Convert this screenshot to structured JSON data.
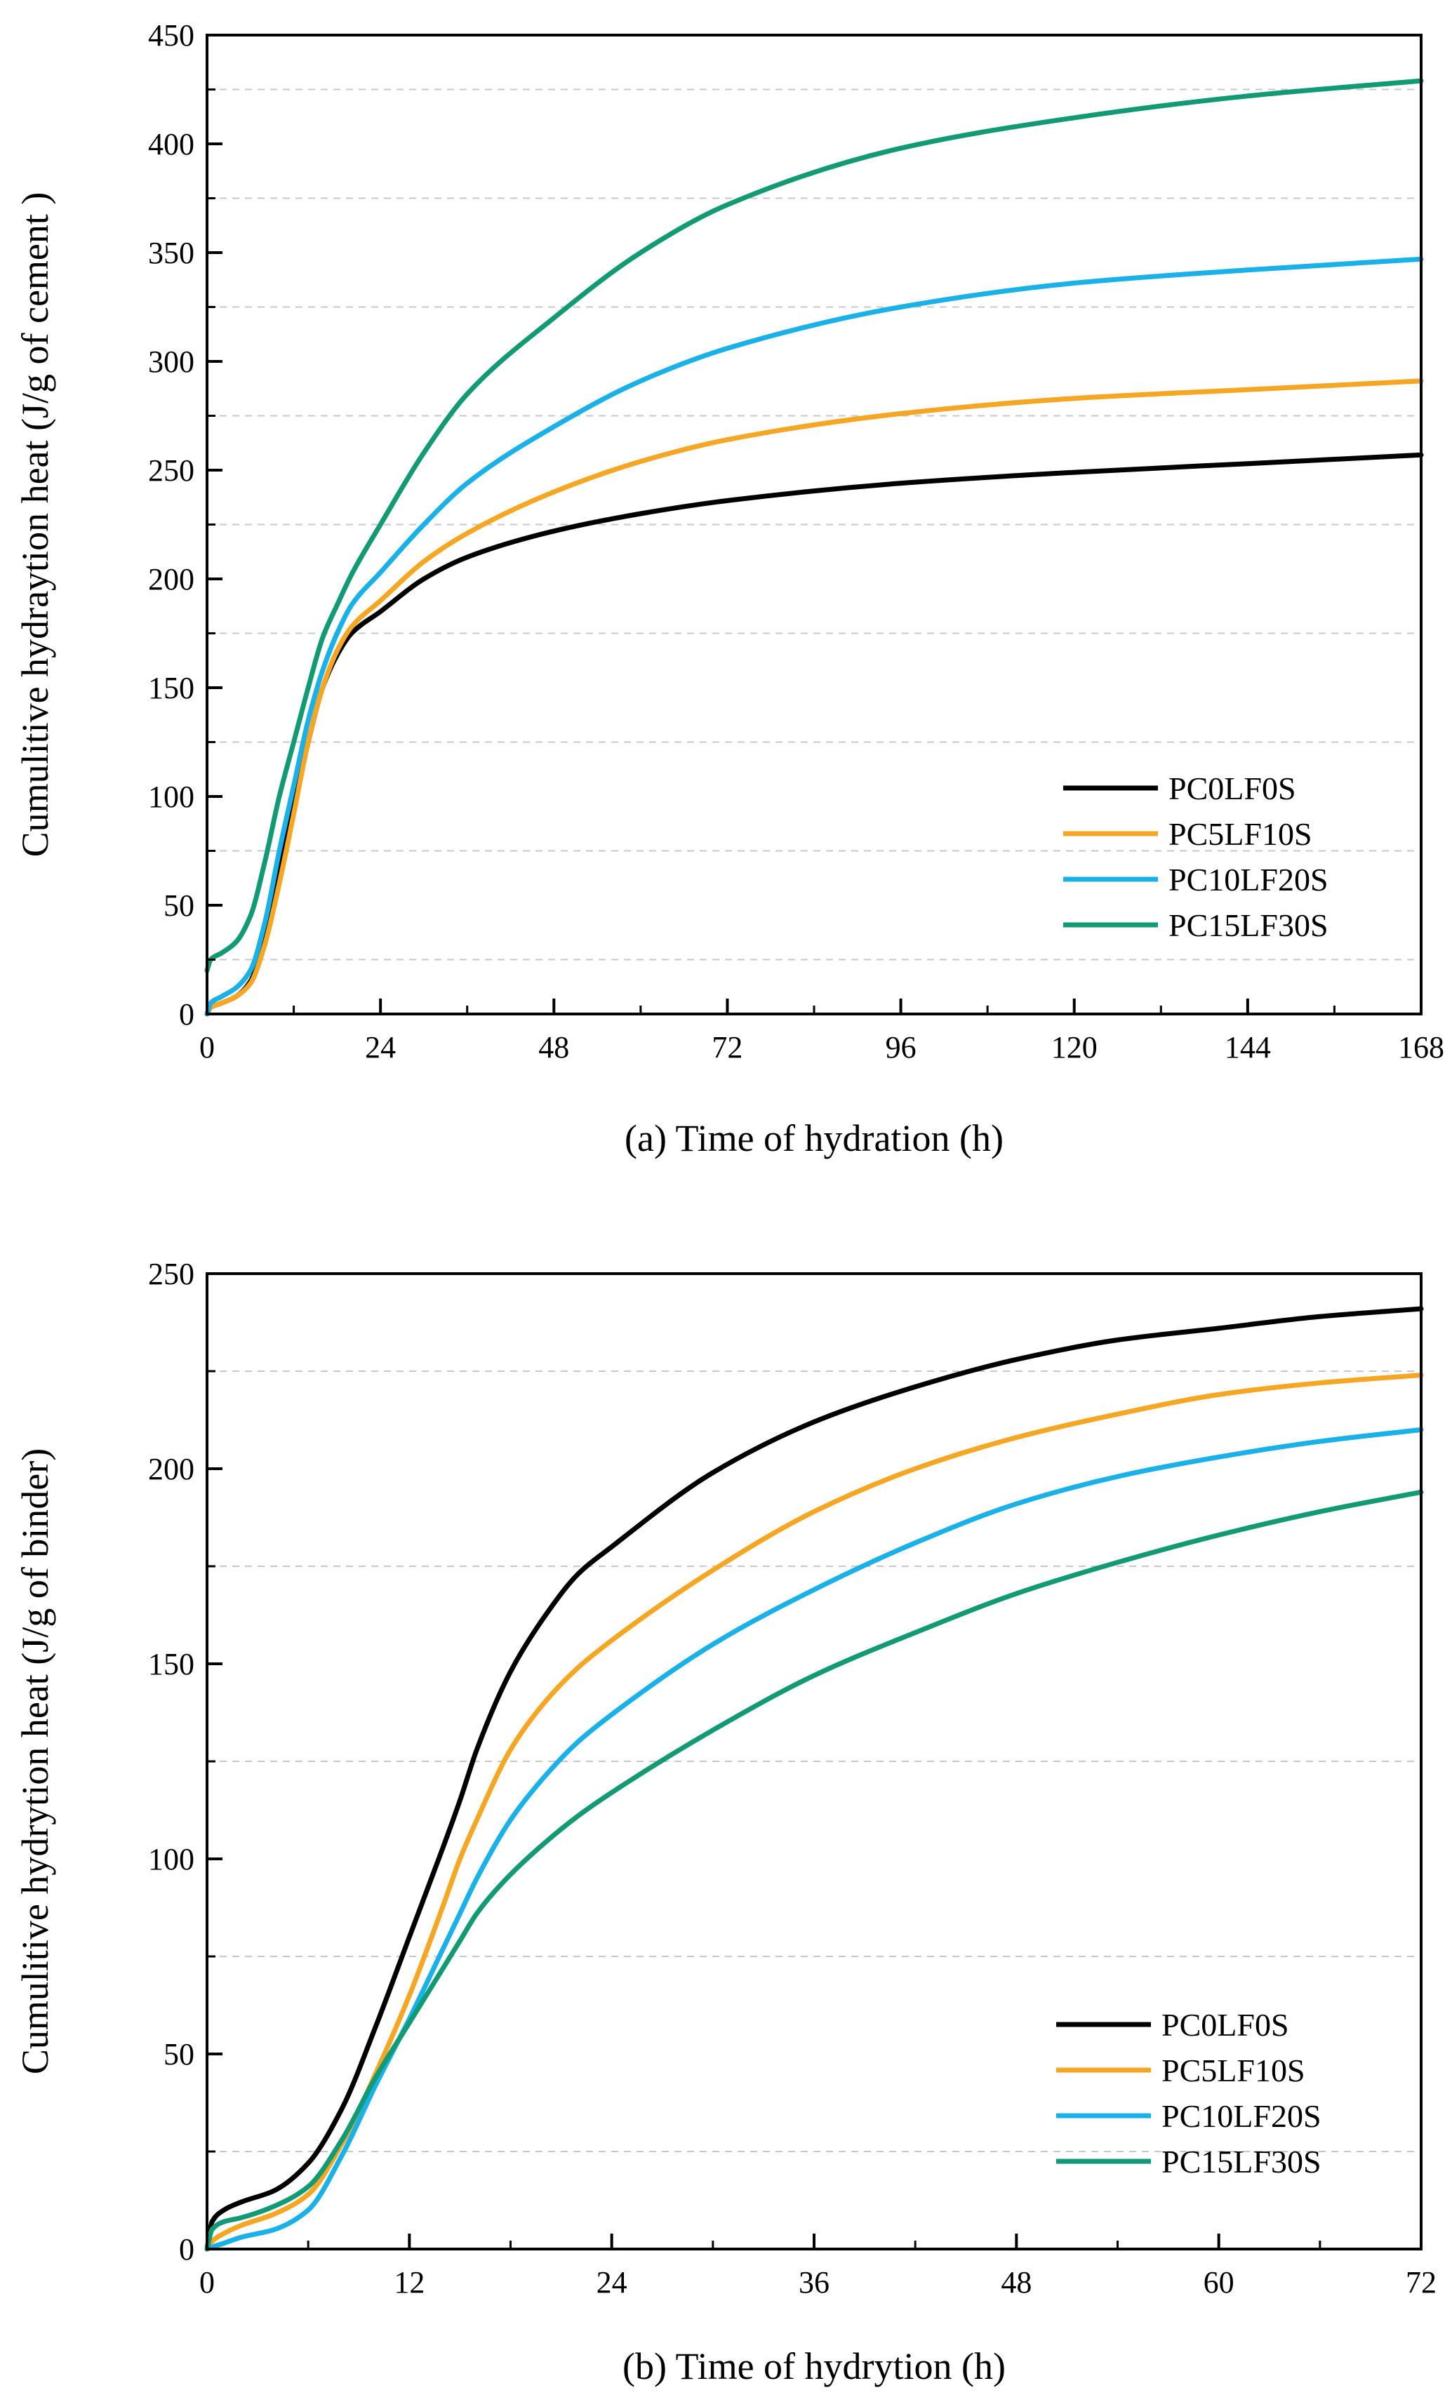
{
  "chart_data": [
    {
      "type": "line",
      "xlabel": "(a) Time of hydration (h)",
      "ylabel": "Cumulitive hydraytion heat (J/g of cement )",
      "xlim": [
        0,
        168
      ],
      "ylim": [
        0,
        450
      ],
      "xticks": [
        0,
        24,
        48,
        72,
        96,
        120,
        144,
        168
      ],
      "yticks": [
        0,
        50,
        100,
        150,
        200,
        250,
        300,
        350,
        400,
        450
      ],
      "grid": "horizontal dashed at midpoints",
      "legend_position": "bottom-right",
      "x": [
        0,
        0.5,
        2,
        4,
        6,
        8,
        10,
        12,
        14,
        16,
        18,
        20,
        24,
        30,
        36,
        48,
        60,
        72,
        96,
        120,
        144,
        168
      ],
      "series": [
        {
          "name": "PC0LF0S",
          "color": "#000000",
          "values": [
            0,
            3,
            5,
            8,
            15,
            35,
            65,
            95,
            125,
            150,
            165,
            175,
            185,
            200,
            210,
            222,
            230,
            236,
            244,
            249,
            253,
            257
          ]
        },
        {
          "name": "PC5LF10S",
          "color": "#f5a623",
          "values": [
            0,
            3,
            5,
            8,
            14,
            32,
            60,
            92,
            125,
            150,
            167,
            178,
            190,
            208,
            221,
            240,
            254,
            264,
            276,
            283,
            287,
            291
          ]
        },
        {
          "name": "PC10LF20S",
          "color": "#1ab0e8",
          "values": [
            0,
            5,
            8,
            12,
            20,
            42,
            75,
            105,
            135,
            158,
            175,
            188,
            203,
            225,
            244,
            270,
            291,
            306,
            325,
            336,
            342,
            347
          ]
        },
        {
          "name": "PC15LF30S",
          "color": "#119a73",
          "values": [
            20,
            25,
            28,
            33,
            45,
            70,
            100,
            125,
            150,
            173,
            188,
            202,
            225,
            258,
            285,
            320,
            350,
            372,
            398,
            412,
            422,
            429
          ]
        }
      ]
    },
    {
      "type": "line",
      "xlabel": "(b) Time of hydrytion (h)",
      "ylabel": "Cumulitive hydrytion heat (J/g of binder)",
      "xlim": [
        0,
        72
      ],
      "ylim": [
        0,
        250
      ],
      "xticks": [
        0,
        12,
        24,
        36,
        48,
        60,
        72
      ],
      "yticks": [
        0,
        50,
        100,
        150,
        200,
        250
      ],
      "grid": "horizontal dashed at midpoints",
      "legend_position": "bottom-right",
      "x": [
        0,
        0.3,
        1,
        2,
        4,
        6,
        8,
        10,
        12,
        14,
        15,
        16,
        18,
        20,
        22,
        24,
        30,
        36,
        42,
        48,
        54,
        60,
        66,
        72
      ],
      "series": [
        {
          "name": "PC0LF0S",
          "color": "#000000",
          "values": [
            0,
            7,
            10,
            12,
            15,
            22,
            36,
            57,
            80,
            103,
            115,
            128,
            148,
            162,
            173,
            180,
            199,
            212,
            221,
            228,
            233,
            236,
            239,
            241
          ]
        },
        {
          "name": "PC5LF10S",
          "color": "#f5a623",
          "values": [
            0,
            2,
            4,
            6,
            9,
            14,
            27,
            45,
            65,
            88,
            100,
            110,
            128,
            140,
            149,
            156,
            174,
            189,
            200,
            208,
            214,
            219,
            222,
            224
          ]
        },
        {
          "name": "PC10LF20S",
          "color": "#1ab0e8",
          "values": [
            0,
            0.5,
            1.5,
            3,
            5,
            10,
            24,
            42,
            59,
            77,
            86,
            95,
            110,
            121,
            130,
            137,
            155,
            169,
            181,
            191,
            198,
            203,
            207,
            210
          ]
        },
        {
          "name": "PC15LF30S",
          "color": "#119a73",
          "values": [
            0,
            5,
            7,
            8,
            11,
            16,
            28,
            44,
            58,
            72,
            79,
            86,
            96,
            104,
            111,
            117,
            133,
            147,
            158,
            168,
            176,
            183,
            189,
            194
          ]
        }
      ]
    }
  ]
}
